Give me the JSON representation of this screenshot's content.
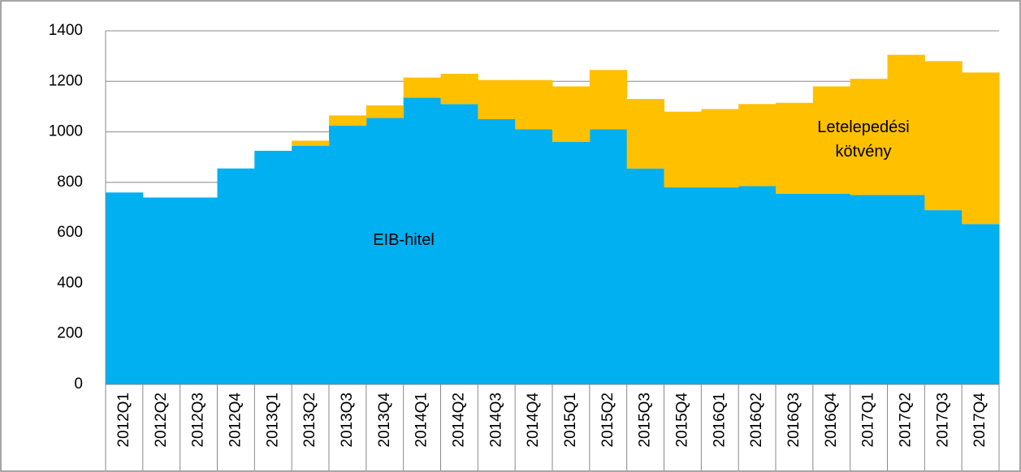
{
  "chart_data": {
    "type": "stacked-step-area",
    "categories": [
      "2012Q1",
      "2012Q2",
      "2012Q3",
      "2012Q4",
      "2013Q1",
      "2013Q2",
      "2013Q3",
      "2013Q4",
      "2014Q1",
      "2014Q2",
      "2014Q3",
      "2014Q4",
      "2015Q1",
      "2015Q2",
      "2015Q3",
      "2015Q4",
      "2016Q1",
      "2016Q2",
      "2016Q3",
      "2016Q4",
      "2017Q1",
      "2017Q2",
      "2017Q3",
      "2017Q4"
    ],
    "series": [
      {
        "name": "EIB-hitel",
        "color": "#00b0f0",
        "values": [
          760,
          740,
          740,
          855,
          925,
          945,
          1025,
          1055,
          1135,
          1110,
          1050,
          1010,
          960,
          1010,
          855,
          780,
          780,
          785,
          755,
          755,
          750,
          750,
          690,
          635
        ]
      },
      {
        "name": "Letelepedési kötvény",
        "color": "#ffc000",
        "values": [
          0,
          0,
          0,
          0,
          0,
          20,
          40,
          50,
          80,
          120,
          155,
          195,
          220,
          235,
          275,
          300,
          310,
          325,
          360,
          425,
          460,
          555,
          590,
          600
        ]
      }
    ],
    "ylim": [
      0,
      1400
    ],
    "yticks": [
      0,
      200,
      400,
      600,
      800,
      1000,
      1200,
      1400
    ],
    "grid": true
  }
}
